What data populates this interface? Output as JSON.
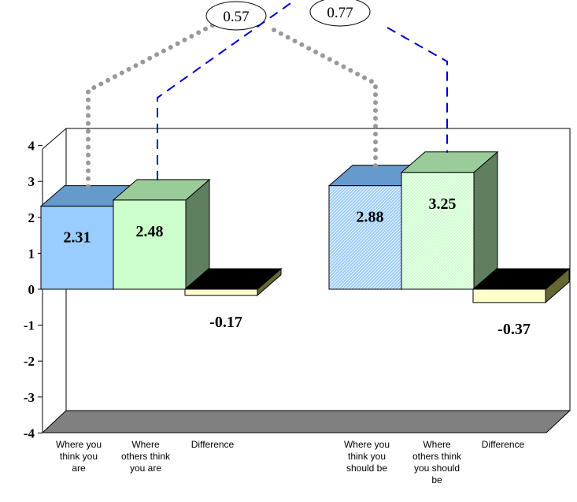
{
  "chart_data": {
    "type": "bar",
    "title": "",
    "xlabel": "",
    "ylabel": "",
    "ylim": [
      -4,
      4
    ],
    "y_ticks": [
      "4",
      "3",
      "2",
      "1",
      "0",
      "-1",
      "-2",
      "-3",
      "-4"
    ],
    "grid": false,
    "style": "3d-clustered",
    "groups": [
      {
        "bars": [
          {
            "label": "Where you think you are",
            "value": 2.31,
            "value_label": "2.31",
            "color": "#99ccff",
            "pattern": "solid"
          },
          {
            "label": "Where others think you are",
            "value": 2.48,
            "value_label": "2.48",
            "color": "#ccffcc",
            "pattern": "solid"
          },
          {
            "label": "Difference",
            "value": -0.17,
            "value_label": "-0.17",
            "color": "#ffffcc",
            "pattern": "solid"
          }
        ]
      },
      {
        "bars": [
          {
            "label": "Where you think you should be",
            "value": 2.88,
            "value_label": "2.88",
            "color": "#99ccff",
            "pattern": "hatched"
          },
          {
            "label": "Where others think you should be",
            "value": 3.25,
            "value_label": "3.25",
            "color": "#ccffcc",
            "pattern": "hatched"
          },
          {
            "label": "Difference",
            "value": -0.37,
            "value_label": "-0.37",
            "color": "#ffffcc",
            "pattern": "solid"
          }
        ]
      }
    ],
    "annotations": [
      {
        "text": "0.57",
        "connects": [
          "Where you think you are",
          "Where you think you should be"
        ],
        "line_style": "dotted",
        "color": "#999999"
      },
      {
        "text": "0.77",
        "connects": [
          "Where others think you are",
          "Where others think you should be"
        ],
        "line_style": "dashed",
        "color": "#0000cc"
      }
    ]
  },
  "x_labels": [
    "Where you\nthink you\nare",
    "Where\nothers think\nyou are",
    "Difference",
    "Where you\nthink you\nshould be",
    "Where\nothers think\nyou should\nbe",
    "Difference"
  ]
}
